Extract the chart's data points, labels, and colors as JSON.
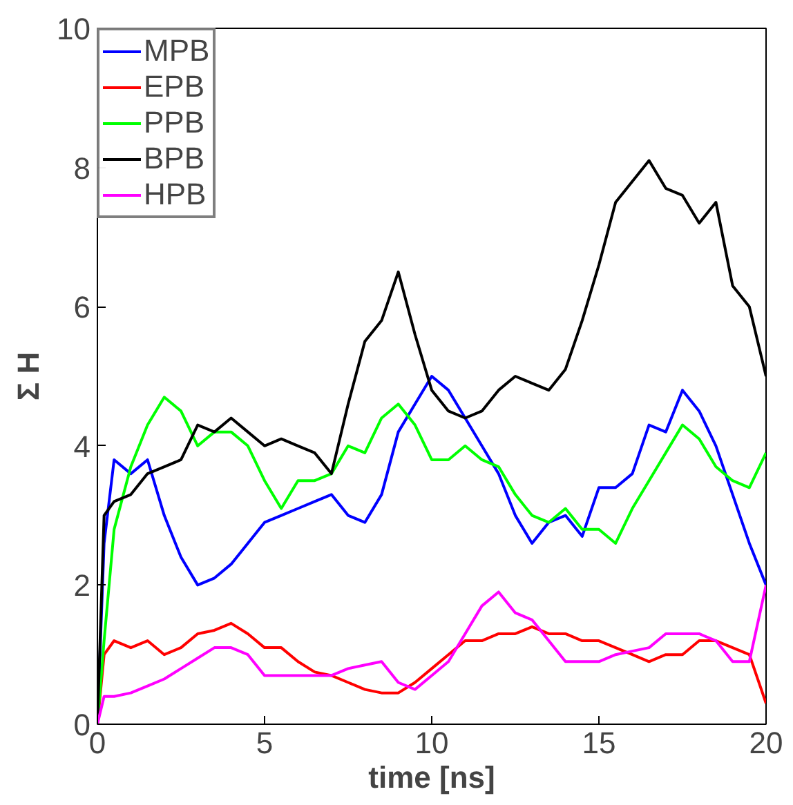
{
  "chart_data": {
    "type": "line",
    "xlabel": "time [ns]",
    "ylabel": "Σ H",
    "x": [
      0,
      0.2,
      0.5,
      1,
      1.5,
      2,
      2.5,
      3,
      3.5,
      4,
      4.5,
      5,
      5.5,
      6,
      6.5,
      7,
      7.5,
      8,
      8.5,
      9,
      9.5,
      10,
      10.5,
      11,
      11.5,
      12,
      12.5,
      13,
      13.5,
      14,
      14.5,
      15,
      15.5,
      16,
      16.5,
      17,
      17.5,
      18,
      18.5,
      19,
      19.5,
      20
    ],
    "series": [
      {
        "name": "MPB",
        "color": "#0000ff",
        "values": [
          0,
          2.6,
          3.8,
          3.6,
          3.8,
          3.0,
          2.4,
          2.0,
          2.1,
          2.3,
          2.6,
          2.9,
          3.0,
          3.1,
          3.2,
          3.3,
          3.0,
          2.9,
          3.3,
          4.2,
          4.6,
          5.0,
          4.8,
          4.4,
          4.0,
          3.6,
          3.0,
          2.6,
          2.9,
          3.0,
          2.7,
          3.4,
          3.4,
          3.6,
          4.3,
          4.2,
          4.8,
          4.5,
          4.0,
          3.3,
          2.6,
          2.0
        ]
      },
      {
        "name": "EPB",
        "color": "#ff0000",
        "values": [
          0,
          1.0,
          1.2,
          1.1,
          1.2,
          1.0,
          1.1,
          1.3,
          1.35,
          1.45,
          1.3,
          1.1,
          1.1,
          0.9,
          0.75,
          0.7,
          0.6,
          0.5,
          0.45,
          0.45,
          0.6,
          0.8,
          1.0,
          1.2,
          1.2,
          1.3,
          1.3,
          1.4,
          1.3,
          1.3,
          1.2,
          1.2,
          1.1,
          1.0,
          0.9,
          1.0,
          1.0,
          1.2,
          1.2,
          1.1,
          1.0,
          0.3
        ]
      },
      {
        "name": "PPB",
        "color": "#00ff00",
        "values": [
          0,
          1.2,
          2.8,
          3.7,
          4.3,
          4.7,
          4.5,
          4.0,
          4.2,
          4.2,
          4.0,
          3.5,
          3.1,
          3.5,
          3.5,
          3.6,
          4.0,
          3.9,
          4.4,
          4.6,
          4.3,
          3.8,
          3.8,
          4.0,
          3.8,
          3.7,
          3.3,
          3.0,
          2.9,
          3.1,
          2.8,
          2.8,
          2.6,
          3.1,
          3.5,
          3.9,
          4.3,
          4.1,
          3.7,
          3.5,
          3.4,
          3.9
        ]
      },
      {
        "name": "BPB",
        "color": "#000000",
        "values": [
          0,
          3.0,
          3.2,
          3.3,
          3.6,
          3.7,
          3.8,
          4.3,
          4.2,
          4.4,
          4.2,
          4.0,
          4.1,
          4.0,
          3.9,
          3.6,
          4.6,
          5.5,
          5.8,
          6.5,
          5.6,
          4.8,
          4.5,
          4.4,
          4.5,
          4.8,
          5.0,
          4.9,
          4.8,
          5.1,
          5.8,
          6.6,
          7.5,
          7.8,
          8.1,
          7.7,
          7.6,
          7.2,
          7.5,
          6.3,
          6.0,
          5.0
        ]
      },
      {
        "name": "HPB",
        "color": "#ff00ff",
        "values": [
          0,
          0.4,
          0.4,
          0.45,
          0.55,
          0.65,
          0.8,
          0.95,
          1.1,
          1.1,
          1.0,
          0.7,
          0.7,
          0.7,
          0.7,
          0.7,
          0.8,
          0.85,
          0.9,
          0.6,
          0.5,
          0.7,
          0.9,
          1.3,
          1.7,
          1.9,
          1.6,
          1.5,
          1.2,
          0.9,
          0.9,
          0.9,
          1.0,
          1.05,
          1.1,
          1.3,
          1.3,
          1.3,
          1.2,
          0.9,
          0.9,
          2.0
        ]
      }
    ],
    "xlim": [
      0,
      20
    ],
    "xticks": [
      0,
      5,
      10,
      15,
      20
    ],
    "ylim": [
      0,
      10
    ],
    "yticks": [
      0,
      2,
      4,
      6,
      8,
      10
    ],
    "grid": false,
    "legend": "top left",
    "marker": "none",
    "line_style": "solid"
  }
}
